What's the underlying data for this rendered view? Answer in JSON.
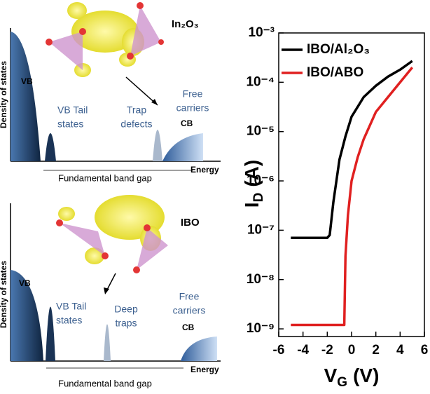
{
  "diagrams": [
    {
      "material": "In₂O₃",
      "y_label": "Density of states",
      "vb": "VB",
      "tail": [
        "VB Tail",
        "states"
      ],
      "trap": [
        "Trap",
        "defects"
      ],
      "free": [
        "Free",
        "carriers"
      ],
      "cb": "CB",
      "energy": "Energy",
      "gap": "Fundamental band gap"
    },
    {
      "material": "IBO",
      "y_label": "Density of states",
      "vb": "VB",
      "tail": [
        "VB Tail",
        "states"
      ],
      "trap": [
        "Deep",
        "traps"
      ],
      "free": [
        "Free",
        "carriers"
      ],
      "cb": "CB",
      "energy": "Energy",
      "gap": "Fundamental band gap"
    }
  ],
  "chart_data": {
    "type": "line",
    "log_y": true,
    "grid": false,
    "legend": "upper left",
    "x_label": {
      "main": "V",
      "sub": "G",
      "unit": "(V)"
    },
    "y_label": {
      "main": "I",
      "sub": "D",
      "unit": "(A)"
    },
    "xlim": [
      -6,
      6
    ],
    "xticks": [
      -6,
      -4,
      -2,
      0,
      2,
      4,
      6
    ],
    "ylim": [
      7e-10,
      0.001
    ],
    "yticks": [
      {
        "value": 1e-09,
        "label": "10⁻⁹"
      },
      {
        "value": 1e-08,
        "label": "10⁻⁸"
      },
      {
        "value": 1e-07,
        "label": "10⁻⁷"
      },
      {
        "value": 1e-06,
        "label": "10⁻⁶"
      },
      {
        "value": 1e-05,
        "label": "10⁻⁵"
      },
      {
        "value": 0.0001,
        "label": "10⁻⁴"
      },
      {
        "value": 0.001,
        "label": "10⁻³"
      }
    ],
    "series": [
      {
        "name": "IBO/Al₂O₃",
        "color": "#000000",
        "x": [
          -5,
          -2,
          -1.8,
          -1.5,
          -1,
          -0.5,
          0,
          1,
          2,
          3,
          4,
          5
        ],
        "values": [
          7e-08,
          7e-08,
          8e-08,
          3.7e-07,
          2.7e-06,
          8e-06,
          2e-05,
          5e-05,
          8.5e-05,
          0.00013,
          0.00018,
          0.00027
        ]
      },
      {
        "name": "IBO/ABO",
        "color": "#e02020",
        "x": [
          -5,
          -0.6,
          -0.5,
          -0.3,
          0,
          0.5,
          1,
          2,
          3,
          4,
          5
        ],
        "values": [
          1.2e-09,
          1.2e-09,
          3e-08,
          2e-07,
          1e-06,
          3e-06,
          7e-06,
          2.5e-05,
          5e-05,
          0.0001,
          0.0002
        ]
      }
    ]
  }
}
